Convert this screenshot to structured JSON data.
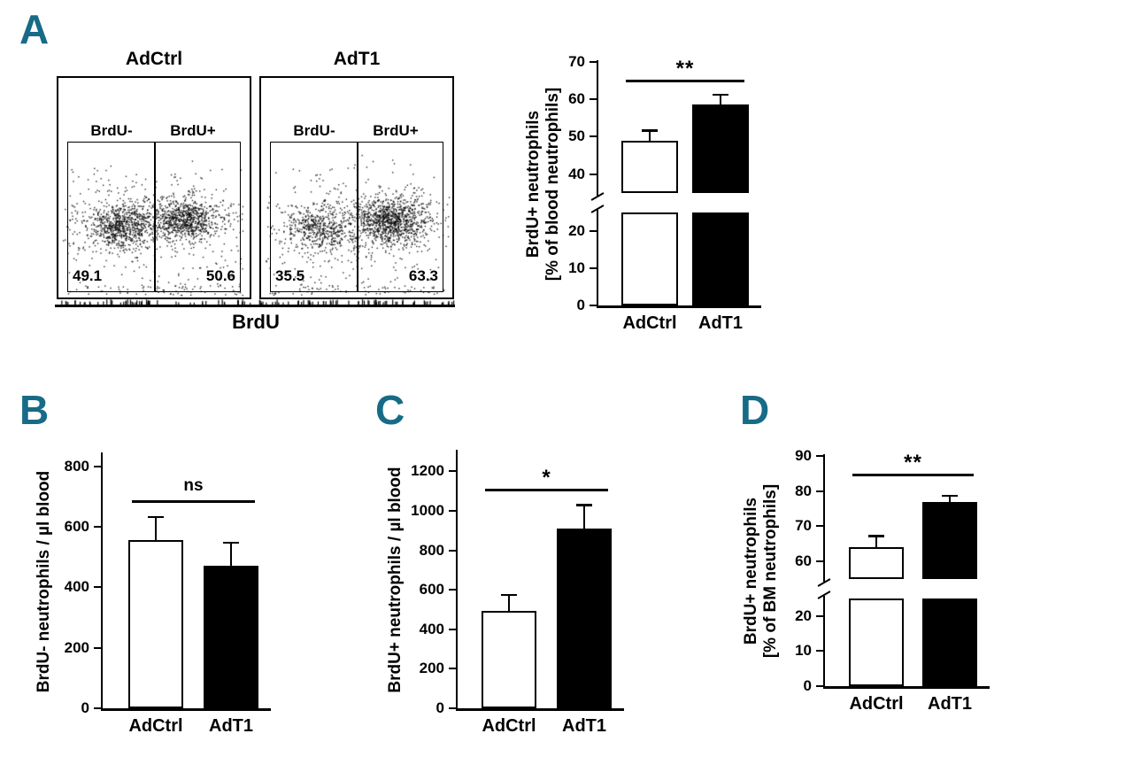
{
  "colors": {
    "accent": "#176B87",
    "bar_open": "#FFFFFF",
    "bar_filled": "#000000"
  },
  "panels": {
    "A": "A",
    "B": "B",
    "C": "C",
    "D": "D"
  },
  "chart_data": [
    {
      "panel": "A",
      "type": "scatter",
      "title": "AdCtrl",
      "xlabel": "BrdU",
      "gate_labels": [
        "BrdU-",
        "BrdU+"
      ],
      "gate_values_pct": [
        49.1,
        50.6
      ]
    },
    {
      "panel": "A",
      "type": "scatter",
      "title": "AdT1",
      "xlabel": "BrdU",
      "gate_labels": [
        "BrdU-",
        "BrdU+"
      ],
      "gate_values_pct": [
        35.5,
        63.3
      ]
    },
    {
      "panel": "A",
      "type": "bar",
      "categories": [
        "AdCtrl",
        "AdT1"
      ],
      "values": [
        49,
        58.5
      ],
      "errors": [
        2.5,
        2.5
      ],
      "bar_colors": [
        "#FFFFFF",
        "#000000"
      ],
      "significance": "**",
      "ylabel_lines": [
        "BrdU+ neutrophils",
        "[% of blood neutrophils]"
      ],
      "ylim": [
        0,
        70
      ],
      "axis_break": {
        "lower_max": 25,
        "upper_min": 35
      },
      "ticks_lower": [
        0,
        10,
        20
      ],
      "ticks_upper": [
        40,
        50,
        60,
        70
      ]
    },
    {
      "panel": "B",
      "type": "bar",
      "categories": [
        "AdCtrl",
        "AdT1"
      ],
      "values": [
        555,
        470
      ],
      "errors": [
        75,
        75
      ],
      "bar_colors": [
        "#FFFFFF",
        "#000000"
      ],
      "significance": "ns",
      "ylabel_lines": [
        "BrdU- neutrophils / µl blood"
      ],
      "ylim": [
        0,
        840
      ],
      "ticks": [
        0,
        200,
        400,
        600,
        800
      ]
    },
    {
      "panel": "C",
      "type": "bar",
      "categories": [
        "AdCtrl",
        "AdT1"
      ],
      "values": [
        495,
        910
      ],
      "errors": [
        75,
        115
      ],
      "bar_colors": [
        "#FFFFFF",
        "#000000"
      ],
      "significance": "*",
      "ylabel_lines": [
        "BrdU+ neutrophils / µl blood"
      ],
      "ylim": [
        0,
        1300
      ],
      "ticks": [
        0,
        200,
        400,
        600,
        800,
        1000,
        1200
      ]
    },
    {
      "panel": "D",
      "type": "bar",
      "categories": [
        "AdCtrl",
        "AdT1"
      ],
      "values": [
        64,
        77
      ],
      "errors": [
        3,
        1.5
      ],
      "bar_colors": [
        "#FFFFFF",
        "#000000"
      ],
      "significance": "**",
      "ylabel_lines": [
        "BrdU+ neutrophils",
        "[% of BM neutrophils]"
      ],
      "ylim": [
        0,
        90
      ],
      "axis_break": {
        "lower_max": 25,
        "upper_min": 55
      },
      "ticks_lower": [
        0,
        10,
        20
      ],
      "ticks_upper": [
        60,
        70,
        80,
        90
      ]
    }
  ]
}
